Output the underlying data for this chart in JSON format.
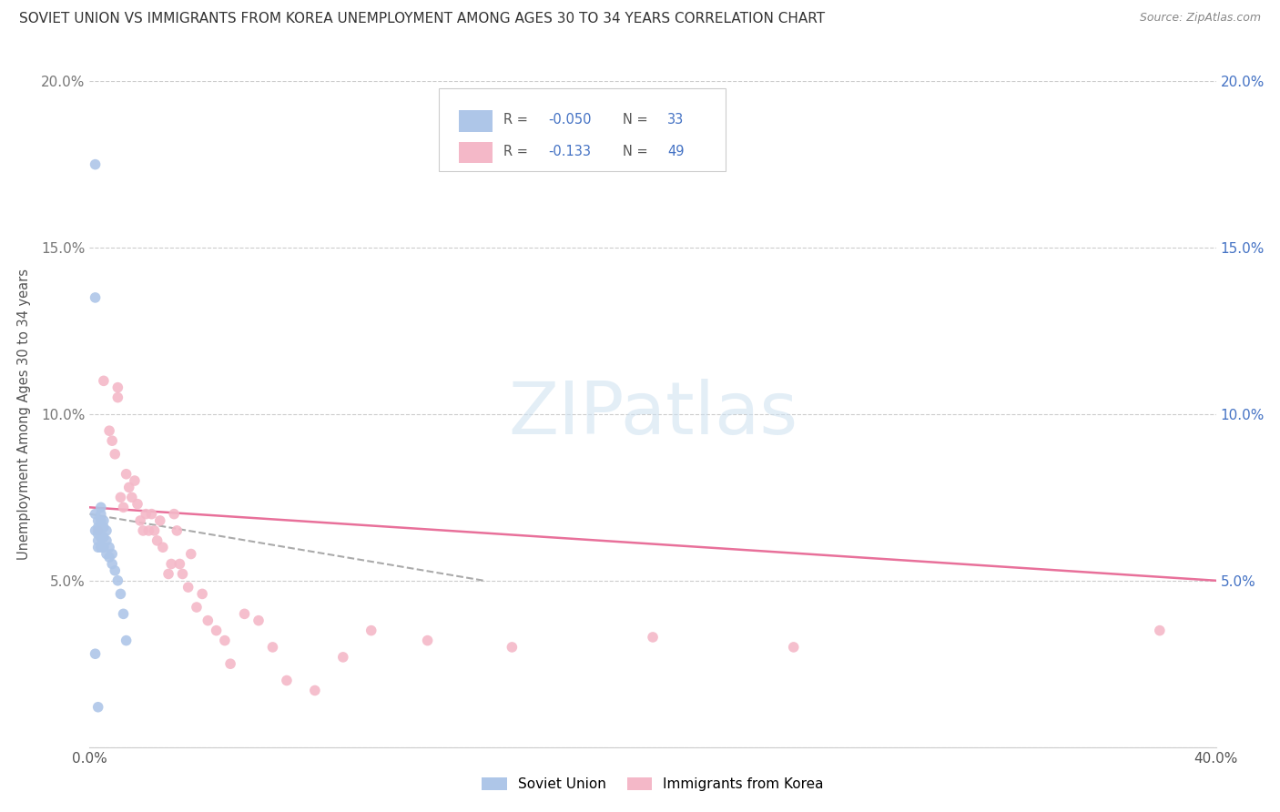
{
  "title": "SOVIET UNION VS IMMIGRANTS FROM KOREA UNEMPLOYMENT AMONG AGES 30 TO 34 YEARS CORRELATION CHART",
  "source": "Source: ZipAtlas.com",
  "ylabel": "Unemployment Among Ages 30 to 34 years",
  "xlim": [
    0.0,
    0.4
  ],
  "ylim": [
    0.0,
    0.2
  ],
  "xticks": [
    0.0,
    0.05,
    0.1,
    0.15,
    0.2,
    0.25,
    0.3,
    0.35,
    0.4
  ],
  "yticks": [
    0.0,
    0.05,
    0.1,
    0.15,
    0.2
  ],
  "background_color": "#ffffff",
  "grid_color": "#cccccc",
  "soviet_color": "#aec6e8",
  "korea_color": "#f4b8c8",
  "soviet_trend_color": "#aaaaaa",
  "korea_trend_color": "#e8709a",
  "soviet_R": "-0.050",
  "soviet_N": "33",
  "korea_R": "-0.133",
  "korea_N": "49",
  "soviet_scatter_x": [
    0.002,
    0.002,
    0.002,
    0.002,
    0.003,
    0.003,
    0.003,
    0.003,
    0.003,
    0.004,
    0.004,
    0.004,
    0.004,
    0.004,
    0.004,
    0.005,
    0.005,
    0.005,
    0.005,
    0.006,
    0.006,
    0.006,
    0.007,
    0.007,
    0.008,
    0.008,
    0.009,
    0.01,
    0.011,
    0.012,
    0.013,
    0.002,
    0.003
  ],
  "soviet_scatter_y": [
    0.175,
    0.135,
    0.07,
    0.065,
    0.068,
    0.066,
    0.064,
    0.062,
    0.06,
    0.072,
    0.07,
    0.068,
    0.066,
    0.063,
    0.06,
    0.068,
    0.066,
    0.063,
    0.06,
    0.065,
    0.062,
    0.058,
    0.06,
    0.057,
    0.058,
    0.055,
    0.053,
    0.05,
    0.046,
    0.04,
    0.032,
    0.028,
    0.012
  ],
  "korea_scatter_x": [
    0.003,
    0.005,
    0.007,
    0.008,
    0.009,
    0.01,
    0.011,
    0.012,
    0.013,
    0.014,
    0.015,
    0.016,
    0.017,
    0.018,
    0.019,
    0.02,
    0.021,
    0.022,
    0.023,
    0.024,
    0.025,
    0.026,
    0.028,
    0.029,
    0.03,
    0.031,
    0.032,
    0.033,
    0.035,
    0.036,
    0.038,
    0.04,
    0.042,
    0.045,
    0.048,
    0.05,
    0.055,
    0.06,
    0.065,
    0.07,
    0.08,
    0.09,
    0.1,
    0.12,
    0.15,
    0.2,
    0.25,
    0.38,
    0.01
  ],
  "korea_scatter_y": [
    0.065,
    0.11,
    0.095,
    0.092,
    0.088,
    0.105,
    0.075,
    0.072,
    0.082,
    0.078,
    0.075,
    0.08,
    0.073,
    0.068,
    0.065,
    0.07,
    0.065,
    0.07,
    0.065,
    0.062,
    0.068,
    0.06,
    0.052,
    0.055,
    0.07,
    0.065,
    0.055,
    0.052,
    0.048,
    0.058,
    0.042,
    0.046,
    0.038,
    0.035,
    0.032,
    0.025,
    0.04,
    0.038,
    0.03,
    0.02,
    0.017,
    0.027,
    0.035,
    0.032,
    0.03,
    0.033,
    0.03,
    0.035,
    0.108
  ],
  "soviet_trend_x": [
    0.0,
    0.14
  ],
  "soviet_trend_y": [
    0.07,
    0.05
  ],
  "korea_trend_x": [
    0.0,
    0.4
  ],
  "korea_trend_y": [
    0.072,
    0.05
  ]
}
